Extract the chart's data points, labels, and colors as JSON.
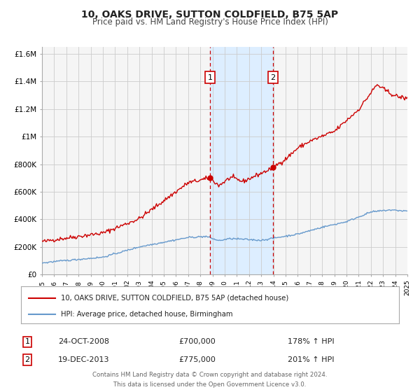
{
  "title": "10, OAKS DRIVE, SUTTON COLDFIELD, B75 5AP",
  "subtitle": "Price paid vs. HM Land Registry's House Price Index (HPI)",
  "red_label": "10, OAKS DRIVE, SUTTON COLDFIELD, B75 5AP (detached house)",
  "blue_label": "HPI: Average price, detached house, Birmingham",
  "annotation1": {
    "num": "1",
    "date": "24-OCT-2008",
    "price": "£700,000",
    "hpi": "178% ↑ HPI",
    "x_year": 2008.81,
    "y_val": 700000
  },
  "annotation2": {
    "num": "2",
    "date": "19-DEC-2013",
    "price": "£775,000",
    "hpi": "201% ↑ HPI",
    "x_year": 2013.96,
    "y_val": 775000
  },
  "ylim": [
    0,
    1650000
  ],
  "xlim": [
    1995,
    2025
  ],
  "yticks": [
    0,
    200000,
    400000,
    600000,
    800000,
    1000000,
    1200000,
    1400000,
    1600000
  ],
  "ytick_labels": [
    "£0",
    "£200K",
    "£400K",
    "£600K",
    "£800K",
    "£1M",
    "£1.2M",
    "£1.4M",
    "£1.6M"
  ],
  "background_color": "#ffffff",
  "plot_bg_color": "#f5f5f5",
  "grid_color": "#cccccc",
  "red_color": "#cc0000",
  "blue_color": "#6699cc",
  "shade_color": "#ddeeff",
  "footer_line1": "Contains HM Land Registry data © Crown copyright and database right 2024.",
  "footer_line2": "This data is licensed under the Open Government Licence v3.0."
}
